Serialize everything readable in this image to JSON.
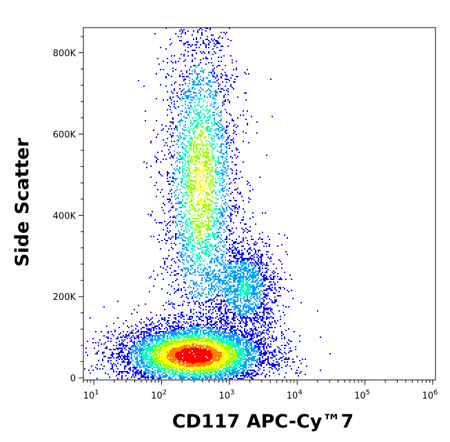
{
  "chart_data": {
    "type": "scatter",
    "subtype": "density-dot-plot",
    "xlabel": "CD117 APC-Cy™7",
    "ylabel": "Side Scatter",
    "x_scale": "log",
    "xlim": [
      7,
      1100000
    ],
    "ylim": [
      -5000,
      862000
    ],
    "x_ticks": [
      {
        "base": "10",
        "exp": "1",
        "value": 10
      },
      {
        "base": "10",
        "exp": "2",
        "value": 100
      },
      {
        "base": "10",
        "exp": "3",
        "value": 1000
      },
      {
        "base": "10",
        "exp": "4",
        "value": 10000
      },
      {
        "base": "10",
        "exp": "5",
        "value": 100000
      },
      {
        "base": "10",
        "exp": "6",
        "value": 1000000
      }
    ],
    "y_ticks": [
      {
        "label": "0",
        "value": 0
      },
      {
        "label": "200K",
        "value": 200000
      },
      {
        "label": "400K",
        "value": 400000
      },
      {
        "label": "600K",
        "value": 600000
      },
      {
        "label": "800K",
        "value": 800000
      }
    ],
    "populations": [
      {
        "x_center": 300,
        "y_center": 55000,
        "x_spread_decades": 0.45,
        "y_spread": 30000,
        "weight": 1.0
      },
      {
        "x_center": 380,
        "y_center": 480000,
        "x_spread_decades": 0.22,
        "y_spread": 160000,
        "weight": 0.55
      },
      {
        "x_center": 1700,
        "y_center": 220000,
        "x_spread_decades": 0.2,
        "y_spread": 50000,
        "weight": 0.25
      }
    ],
    "density_colors": [
      "#0000ff",
      "#00a0ff",
      "#00ffc0",
      "#a0ff00",
      "#ffff00",
      "#ff8000",
      "#ff0000"
    ],
    "grid": false,
    "legend": "none"
  }
}
